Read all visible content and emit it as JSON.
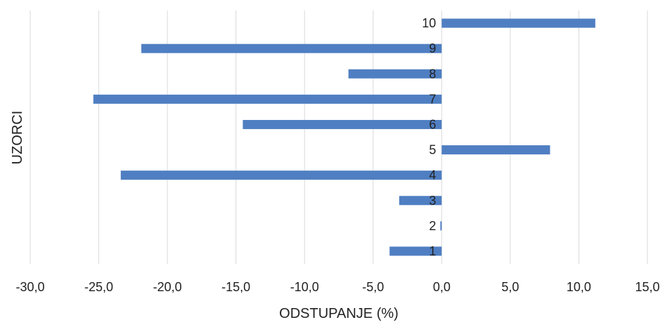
{
  "chart_data": {
    "type": "bar",
    "orientation": "horizontal",
    "title": "",
    "xlabel": "ODSTUPANJE (%)",
    "ylabel": "UZORCI",
    "categories": [
      "1",
      "2",
      "3",
      "4",
      "5",
      "6",
      "7",
      "8",
      "9",
      "10"
    ],
    "values": [
      -3.8,
      -0.1,
      -3.1,
      -23.4,
      7.9,
      -14.5,
      -25.4,
      -6.8,
      -21.9,
      11.2
    ],
    "xlim": [
      -30,
      15
    ],
    "x_ticks": [
      "-30,0",
      "-25,0",
      "-20,0",
      "-15,0",
      "-10,0",
      "-5,0",
      "0,0",
      "5,0",
      "10,0",
      "15,0"
    ],
    "x_tick_values": [
      -30,
      -25,
      -20,
      -15,
      -10,
      -5,
      0,
      5,
      10,
      15
    ],
    "grid": "vertical",
    "legend": "none",
    "bar_color": "#4f7fc2",
    "grid_color": "#d9d9d9"
  }
}
